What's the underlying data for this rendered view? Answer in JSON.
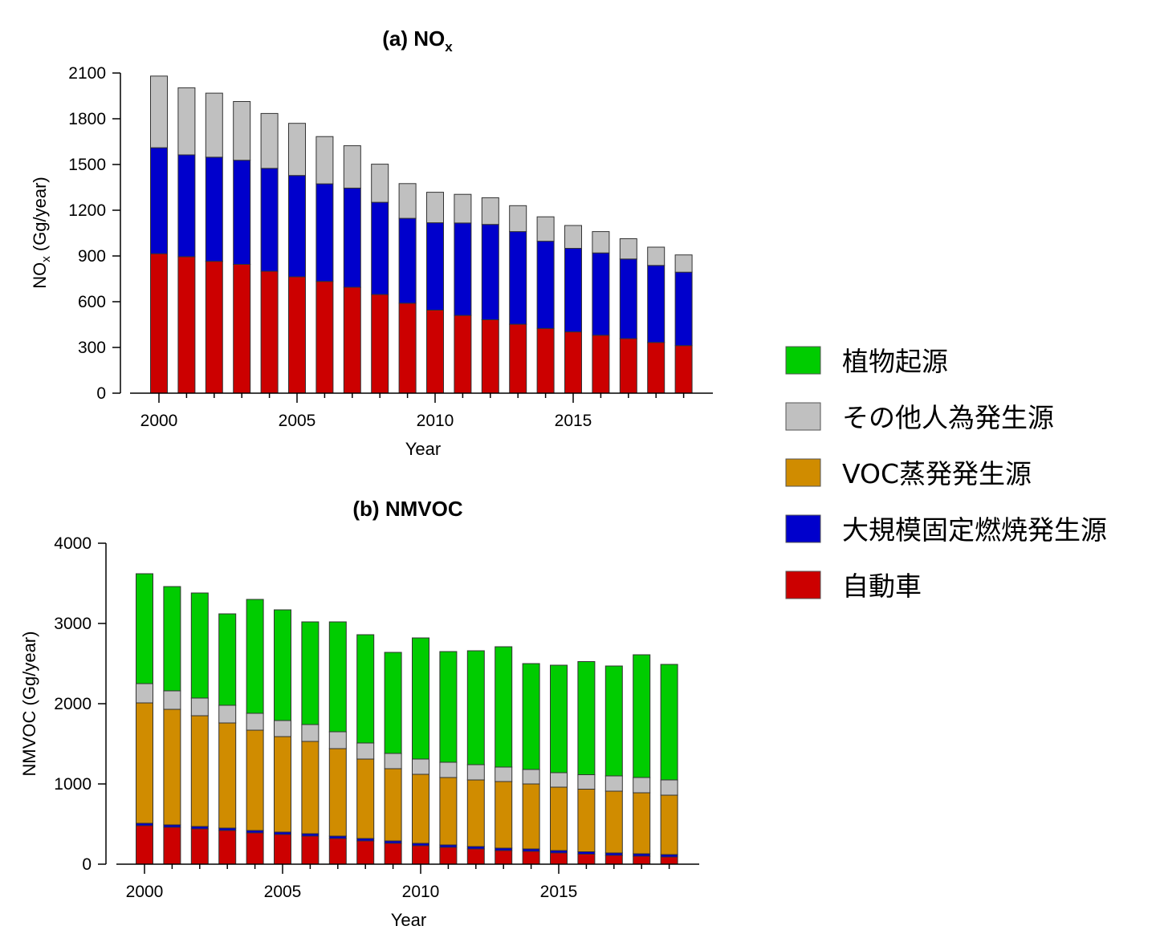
{
  "colors": {
    "biogenic": "#00cc00",
    "other_anthropogenic": "#c0c0c0",
    "voc_evaporative": "#d08c00",
    "large_stationary": "#0000cc",
    "automobile": "#cc0000"
  },
  "legend": {
    "placement": "right",
    "items": [
      {
        "key": "biogenic",
        "label": "植物起源"
      },
      {
        "key": "other_anthropogenic",
        "label": "その他人為発生源"
      },
      {
        "key": "voc_evaporative",
        "label": "VOC蒸発発生源"
      },
      {
        "key": "large_stationary",
        "label": "大規模固定燃焼発生源"
      },
      {
        "key": "automobile",
        "label": "自動車"
      }
    ]
  },
  "chart_data": [
    {
      "type": "bar",
      "stacked": true,
      "title_main": "(a) NO",
      "title_sub": "x",
      "xlabel": "Year",
      "ylabel_main": "NO",
      "ylabel_sub": "x",
      "ylabel_rest": " (Gg/year)",
      "ylim": [
        0,
        2100
      ],
      "yticks": [
        0,
        300,
        600,
        900,
        1200,
        1500,
        1800,
        2100
      ],
      "xticks": [
        2000,
        2005,
        2010,
        2015
      ],
      "x": [
        2000,
        2001,
        2002,
        2003,
        2004,
        2005,
        2006,
        2007,
        2008,
        2009,
        2010,
        2011,
        2012,
        2013,
        2014,
        2015,
        2016,
        2017,
        2018,
        2019
      ],
      "series": [
        {
          "key": "automobile",
          "values": [
            915,
            895,
            865,
            845,
            800,
            763,
            733,
            695,
            647,
            590,
            545,
            510,
            482,
            452,
            425,
            402,
            380,
            358,
            333,
            312
          ]
        },
        {
          "key": "large_stationary",
          "values": [
            695,
            668,
            683,
            683,
            675,
            665,
            640,
            650,
            605,
            557,
            573,
            606,
            625,
            608,
            572,
            548,
            540,
            522,
            505,
            482
          ]
        },
        {
          "key": "other_anthropogenic",
          "values": [
            470,
            440,
            420,
            385,
            360,
            342,
            310,
            278,
            250,
            228,
            200,
            188,
            175,
            170,
            160,
            150,
            140,
            133,
            120,
            113
          ]
        }
      ]
    },
    {
      "type": "bar",
      "stacked": true,
      "title_main": "(b) NMVOC",
      "title_sub": "",
      "xlabel": "Year",
      "ylabel_main": "NMVOC (Gg/year)",
      "ylabel_sub": "",
      "ylabel_rest": "",
      "ylim": [
        0,
        4000
      ],
      "yticks": [
        0,
        1000,
        2000,
        3000,
        4000
      ],
      "xticks": [
        2000,
        2005,
        2010,
        2015
      ],
      "x": [
        2000,
        2001,
        2002,
        2003,
        2004,
        2005,
        2006,
        2007,
        2008,
        2009,
        2010,
        2011,
        2012,
        2013,
        2014,
        2015,
        2016,
        2017,
        2018,
        2019
      ],
      "series": [
        {
          "key": "automobile",
          "values": [
            480,
            460,
            440,
            420,
            390,
            370,
            350,
            320,
            290,
            260,
            230,
            210,
            190,
            170,
            160,
            140,
            125,
            110,
            100,
            90
          ]
        },
        {
          "key": "large_stationary",
          "values": [
            30,
            30,
            30,
            30,
            30,
            30,
            30,
            30,
            30,
            30,
            30,
            30,
            30,
            30,
            30,
            30,
            30,
            30,
            30,
            30
          ]
        },
        {
          "key": "voc_evaporative",
          "values": [
            1500,
            1440,
            1380,
            1310,
            1250,
            1190,
            1150,
            1090,
            990,
            900,
            860,
            840,
            830,
            830,
            810,
            790,
            780,
            770,
            760,
            740
          ]
        },
        {
          "key": "other_anthropogenic",
          "values": [
            240,
            230,
            220,
            220,
            210,
            200,
            210,
            210,
            200,
            190,
            190,
            190,
            190,
            180,
            180,
            180,
            180,
            190,
            190,
            190
          ]
        },
        {
          "key": "biogenic",
          "values": [
            1370,
            1300,
            1310,
            1140,
            1420,
            1380,
            1280,
            1370,
            1350,
            1260,
            1510,
            1380,
            1420,
            1500,
            1320,
            1340,
            1410,
            1370,
            1530,
            1440
          ]
        }
      ]
    }
  ]
}
